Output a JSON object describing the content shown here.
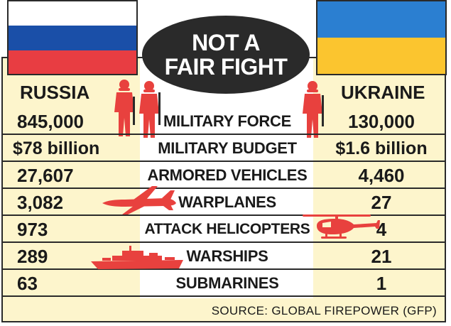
{
  "title": {
    "line1": "NOT A",
    "line2": "FAIR FIGHT"
  },
  "countries": {
    "left": "RUSSIA",
    "right": "UKRAINE"
  },
  "rows": [
    {
      "label": "MILITARY FORCE",
      "russia": "845,000",
      "ukraine": "130,000"
    },
    {
      "label": "MILITARY BUDGET",
      "russia": "$78 billion",
      "ukraine": "$1.6 billion"
    },
    {
      "label": "ARMORED VEHICLES",
      "russia": "27,607",
      "ukraine": "4,460"
    },
    {
      "label": "WARPLANES",
      "russia": "3,082",
      "ukraine": "27"
    },
    {
      "label": "ATTACK HELICOPTERS",
      "russia": "973",
      "ukraine": "4"
    },
    {
      "label": "WARSHIPS",
      "russia": "289",
      "ukraine": "21"
    },
    {
      "label": "SUBMARINES",
      "russia": "63",
      "ukraine": "1"
    }
  ],
  "source": "SOURCE: GLOBAL FIREPOWER (GFP)",
  "icons": [
    "soldier-icon",
    "warplane-icon",
    "helicopter-icon",
    "warship-icon"
  ],
  "colors": {
    "accent_red": "#e8413e",
    "panel_bg": "#fdf5cc",
    "ru_blue": "#1a4fa8",
    "ru_red": "#e83d42",
    "ua_blue": "#2b7fd1",
    "ua_yellow": "#fbc52f",
    "dark": "#2a2a2a"
  }
}
